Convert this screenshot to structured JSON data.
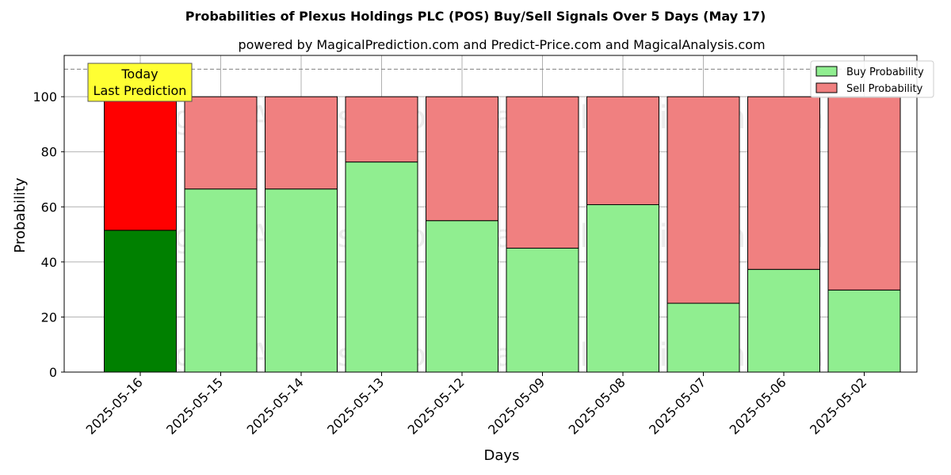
{
  "chart_data": {
    "type": "bar",
    "stacked": true,
    "title": "Probabilities of Plexus Holdings PLC (POS) Buy/Sell Signals Over 5 Days (May 17)",
    "subtitle": "powered by MagicalPrediction.com and Predict-Price.com and MagicalAnalysis.com",
    "xlabel": "Days",
    "ylabel": "Probability",
    "ylim": [
      0,
      115
    ],
    "yticks": [
      0,
      20,
      40,
      60,
      80,
      100
    ],
    "grid": true,
    "legend_position": "top-right",
    "reference_line": 110,
    "categories": [
      "2025-05-16",
      "2025-05-15",
      "2025-05-14",
      "2025-05-13",
      "2025-05-12",
      "2025-05-09",
      "2025-05-08",
      "2025-05-07",
      "2025-05-06",
      "2025-05-02"
    ],
    "series": [
      {
        "name": "Buy Probability",
        "values": [
          51.5,
          66.5,
          66.5,
          76.3,
          55.0,
          45.0,
          60.8,
          25.0,
          37.3,
          29.8
        ],
        "color": "#90ee90",
        "highlight_color": "#008000"
      },
      {
        "name": "Sell Probability",
        "values": [
          48.5,
          33.5,
          33.5,
          23.7,
          45.0,
          55.0,
          39.2,
          75.0,
          62.7,
          70.2
        ],
        "color": "#f08080",
        "highlight_color": "#ff0000"
      }
    ],
    "annotation": {
      "lines": [
        "Today",
        "Last Prediction"
      ],
      "category": "2025-05-16"
    },
    "watermark": "MagicalAnalysis.com   MagicalPrediction.com"
  }
}
